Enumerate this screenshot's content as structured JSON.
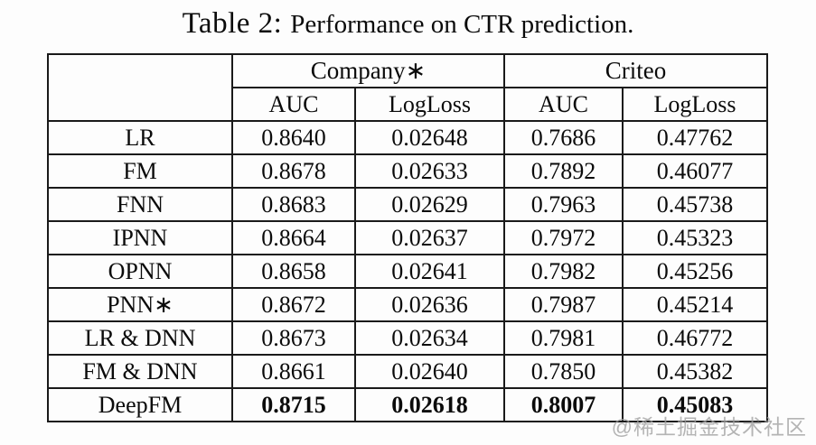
{
  "page": {
    "caption_prefix": "Table 2:",
    "caption_text": "Performance on CTR prediction.",
    "watermark": "@稀土掘金技术社区"
  },
  "chart_data": {
    "type": "table",
    "title": "Table 2: Performance on CTR prediction.",
    "column_groups": [
      {
        "label": "",
        "span": 1
      },
      {
        "label": "Company∗",
        "span": 2
      },
      {
        "label": "Criteo",
        "span": 2
      }
    ],
    "sub_columns": [
      "AUC",
      "LogLoss",
      "AUC",
      "LogLoss"
    ],
    "rows": [
      {
        "model": "LR",
        "values": [
          "0.8640",
          "0.02648",
          "0.7686",
          "0.47762"
        ],
        "bold": false
      },
      {
        "model": "FM",
        "values": [
          "0.8678",
          "0.02633",
          "0.7892",
          "0.46077"
        ],
        "bold": false
      },
      {
        "model": "FNN",
        "values": [
          "0.8683",
          "0.02629",
          "0.7963",
          "0.45738"
        ],
        "bold": false
      },
      {
        "model": "IPNN",
        "values": [
          "0.8664",
          "0.02637",
          "0.7972",
          "0.45323"
        ],
        "bold": false
      },
      {
        "model": "OPNN",
        "values": [
          "0.8658",
          "0.02641",
          "0.7982",
          "0.45256"
        ],
        "bold": false
      },
      {
        "model": "PNN∗",
        "values": [
          "0.8672",
          "0.02636",
          "0.7987",
          "0.45214"
        ],
        "bold": false
      },
      {
        "model": "LR & DNN",
        "values": [
          "0.8673",
          "0.02634",
          "0.7981",
          "0.46772"
        ],
        "bold": false
      },
      {
        "model": "FM & DNN",
        "values": [
          "0.8661",
          "0.02640",
          "0.7850",
          "0.45382"
        ],
        "bold": false
      },
      {
        "model": "DeepFM",
        "values": [
          "0.8715",
          "0.02618",
          "0.8007",
          "0.45083"
        ],
        "bold": true
      }
    ]
  }
}
